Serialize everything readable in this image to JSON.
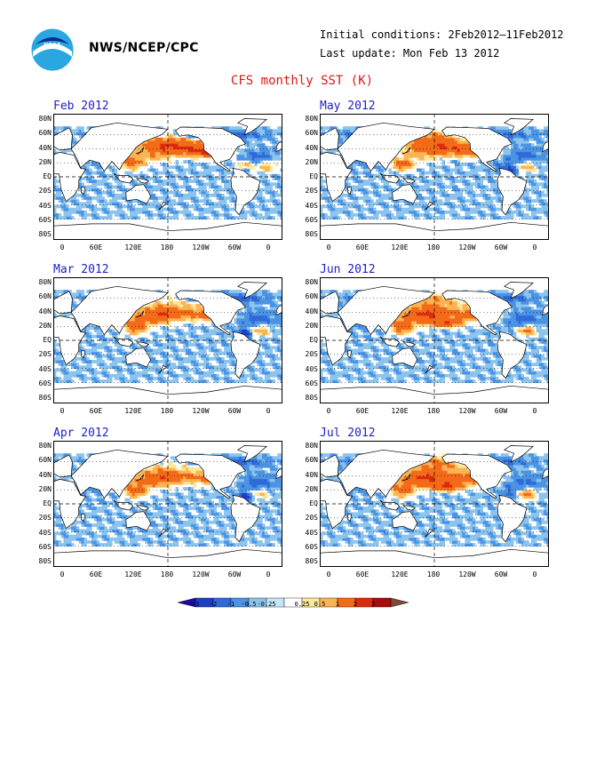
{
  "header": {
    "org": "NWS/NCEP/CPC",
    "initial_conditions": "Initial conditions: 2Feb2012–11Feb2012",
    "last_update": "Last update: Mon Feb 13 2012",
    "title": "CFS monthly SST (K)",
    "logo_icon": "noaa-logo-icon"
  },
  "axes": {
    "lat_labels": [
      "80N",
      "60N",
      "40N",
      "20N",
      "EQ",
      "20S",
      "40S",
      "60S",
      "80S"
    ],
    "lon_labels": [
      "0",
      "60E",
      "120E",
      "180",
      "120W",
      "60W",
      "0"
    ]
  },
  "panels": [
    {
      "title": "Feb 2012"
    },
    {
      "title": "May 2012"
    },
    {
      "title": "Mar 2012"
    },
    {
      "title": "Jun 2012"
    },
    {
      "title": "Apr 2012"
    },
    {
      "title": "Jul 2012"
    }
  ],
  "colorbar": {
    "labels": [
      "-3",
      "-2",
      "-1",
      "-0.5",
      "-0.25",
      "0.25",
      "0.5",
      "1",
      "2",
      "3"
    ],
    "colors": [
      "#1a0a9e",
      "#1c3fc6",
      "#2e6ad8",
      "#4b93e3",
      "#8cc4ee",
      "#c6e6f6",
      "#ffffff",
      "#fde79a",
      "#fbb454",
      "#f36a18",
      "#dc2a10",
      "#a80c0c",
      "#7c4a3a"
    ]
  }
}
